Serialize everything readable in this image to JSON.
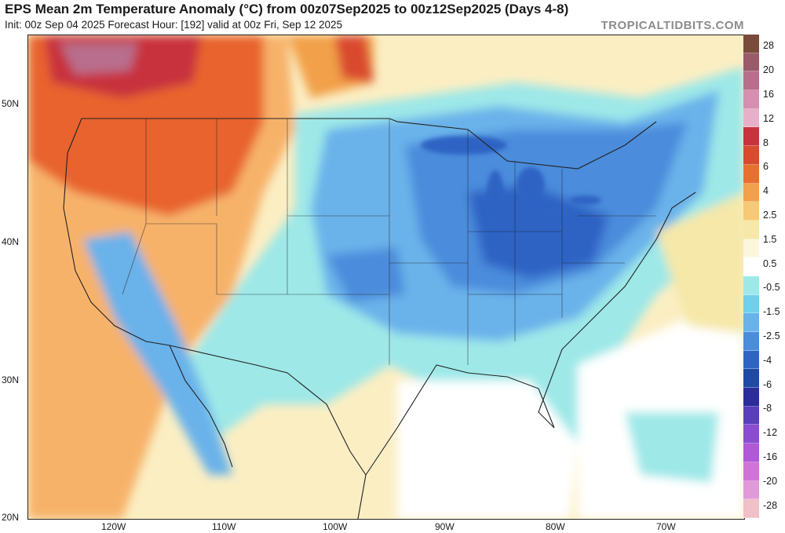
{
  "header": {
    "title": "EPS Mean 2m Temperature Anomaly (°C) from 00z07Sep2025 to 00z12Sep2025 (Days 4-8)",
    "subtitle": "Init: 00z Sep 04 2025   Forecast Hour: [192]   valid at 00z Fri, Sep 12 2025",
    "brand": "TROPICALTIDBITS.COM"
  },
  "map": {
    "lat_labels": [
      "50N",
      "40N",
      "30N",
      "20N"
    ],
    "lon_labels": [
      "120W",
      "110W",
      "100W",
      "90W",
      "80W",
      "70W"
    ]
  },
  "colorbar": {
    "labels": [
      "28",
      "20",
      "16",
      "12",
      "8",
      "6",
      "4",
      "2.5",
      "1.5",
      "0.5",
      "-0.5",
      "-1.5",
      "-2.5",
      "-4",
      "-6",
      "-8",
      "-12",
      "-16",
      "-20",
      "-28"
    ],
    "colors": [
      "#7a4a3a",
      "#9a5a6a",
      "#b86e8c",
      "#d68fb0",
      "#e8b0c8",
      "#c8323c",
      "#d94a2e",
      "#e8702e",
      "#f2a04a",
      "#f7c875",
      "#f5e8a8",
      "#fcf6dc",
      "#ffffff",
      "#9ee8e8",
      "#6fd0ec",
      "#6ab2ea",
      "#4c8cdc",
      "#2f64c4",
      "#1e4aa6",
      "#2c2c9c",
      "#5a3fbc",
      "#8a4cd0",
      "#b058d8",
      "#d074d8",
      "#e09ad8",
      "#f0c0c8"
    ]
  }
}
